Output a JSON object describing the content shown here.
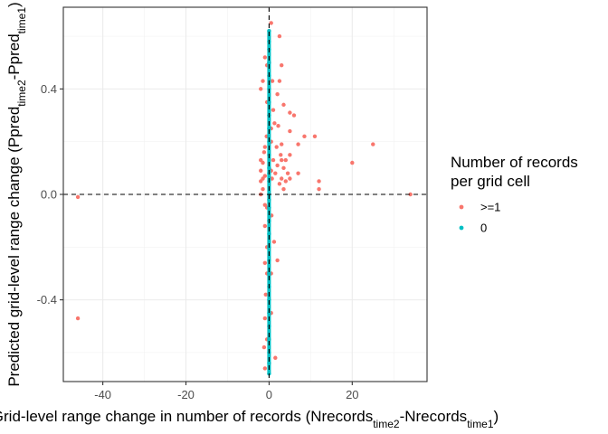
{
  "chart_data": {
    "type": "scatter",
    "xlabel": {
      "parts": [
        {
          "text": "Grid-level range change in number of records (Nrecords",
          "sub": false
        },
        {
          "text": "time2",
          "sub": true
        },
        {
          "text": "-Nrecords",
          "sub": false
        },
        {
          "text": "time1",
          "sub": true
        },
        {
          "text": ")",
          "sub": false
        }
      ]
    },
    "ylabel": {
      "parts": [
        {
          "text": "Predicted grid-level range change (Ppred",
          "sub": false
        },
        {
          "text": "time2",
          "sub": true
        },
        {
          "text": "-Ppred",
          "sub": false
        },
        {
          "text": "time1",
          "sub": true
        },
        {
          "text": ")",
          "sub": false
        }
      ]
    },
    "xlim": [
      -49.5,
      38
    ],
    "ylim": [
      -0.71,
      0.71
    ],
    "x_ticks": [
      -40,
      -20,
      0,
      20
    ],
    "x_tick_labels": [
      "-40",
      "-20",
      "0",
      "20"
    ],
    "y_ticks": [
      -0.4,
      0.0,
      0.4
    ],
    "y_tick_labels": [
      "-0.4",
      "0.0",
      "0.4"
    ],
    "grid": true,
    "reference_lines": {
      "x": 0,
      "y": 0,
      "style": "dashed"
    },
    "legend": {
      "title_lines": [
        "Number of records",
        "per grid cell"
      ],
      "position": "right",
      "entries": [
        {
          "label": ">=1",
          "color": "#F8766D"
        },
        {
          "label": "0",
          "color": "#00BFC4"
        }
      ]
    },
    "series": [
      {
        "name": ">=1",
        "color": "#F8766D",
        "points": [
          [
            -46,
            -0.01
          ],
          [
            -46,
            -0.47
          ],
          [
            34,
            0.0
          ],
          [
            25,
            0.19
          ],
          [
            20,
            0.12
          ],
          [
            12,
            0.05
          ],
          [
            12,
            0.02
          ],
          [
            11,
            0.22
          ],
          [
            8.5,
            0.22
          ],
          [
            7,
            0.19
          ],
          [
            7,
            0.08
          ],
          [
            6,
            0.3
          ],
          [
            5,
            0.31
          ],
          [
            5,
            0.24
          ],
          [
            5,
            0.15
          ],
          [
            5,
            0.06
          ],
          [
            4,
            0.13
          ],
          [
            4,
            0.05
          ],
          [
            3.5,
            0.34
          ],
          [
            3.5,
            0.1
          ],
          [
            3,
            0.49
          ],
          [
            3,
            0.19
          ],
          [
            3,
            0.06
          ],
          [
            2.5,
            0.43
          ],
          [
            2.5,
            0.04
          ],
          [
            2,
            0.38
          ],
          [
            2,
            0.11
          ],
          [
            2,
            -0.25
          ],
          [
            1.5,
            0.08
          ],
          [
            1,
            0.13
          ],
          [
            0.5,
            0.65
          ],
          [
            0.5,
            0.25
          ],
          [
            0.5,
            0.2
          ],
          [
            0.5,
            0.09
          ],
          [
            0.5,
            -0.3
          ],
          [
            0.5,
            -0.45
          ],
          [
            2.5,
            0.6
          ],
          [
            0,
            0.5
          ],
          [
            0,
            0.3
          ],
          [
            0,
            -0.1
          ],
          [
            -0.5,
            0.49
          ],
          [
            -0.5,
            0.35
          ],
          [
            -0.5,
            -0.05
          ],
          [
            -0.5,
            -0.2
          ],
          [
            -0.5,
            -0.3
          ],
          [
            -0.5,
            -0.55
          ],
          [
            -1,
            0.52
          ],
          [
            -1,
            0.18
          ],
          [
            -1,
            0.07
          ],
          [
            -1,
            -0.04
          ],
          [
            -1,
            -0.12
          ],
          [
            -1,
            -0.26
          ],
          [
            -1,
            -0.47
          ],
          [
            -1,
            -0.66
          ],
          [
            -1.5,
            0.43
          ],
          [
            -1.5,
            0.12
          ],
          [
            -1.5,
            0.02
          ],
          [
            -2,
            0.13
          ],
          [
            -2,
            0.09
          ],
          [
            -2,
            0.05
          ],
          [
            -2,
            0.0
          ],
          [
            -2,
            0.4
          ],
          [
            3,
            0.13
          ],
          [
            3.5,
            0.02
          ],
          [
            4.5,
            0.08
          ],
          [
            -1.2,
            0.16
          ],
          [
            1.8,
            0.18
          ],
          [
            2.2,
            0.26
          ],
          [
            -0.8,
            -0.38
          ],
          [
            1.2,
            -0.18
          ],
          [
            0.8,
            0.43
          ],
          [
            -1.2,
            -0.58
          ],
          [
            1.5,
            -0.62
          ],
          [
            0.7,
            0.06
          ],
          [
            1.0,
            0.32
          ],
          [
            -0.6,
            0.22
          ],
          [
            2.8,
            0.15
          ],
          [
            1.3,
            0.27
          ],
          [
            -1.5,
            0.06
          ],
          [
            0.6,
            -0.08
          ]
        ]
      },
      {
        "name": "0",
        "color": "#00BFC4",
        "points": [
          [
            0,
            0.62
          ],
          [
            0,
            0.55
          ],
          [
            0,
            0.5
          ],
          [
            0,
            0.45
          ],
          [
            0,
            0.4
          ],
          [
            0,
            0.35
          ],
          [
            0,
            0.3
          ],
          [
            0,
            0.25
          ],
          [
            0,
            0.2
          ],
          [
            0,
            0.15
          ],
          [
            0,
            0.1
          ],
          [
            0,
            0.05
          ],
          [
            0,
            0.0
          ],
          [
            0,
            -0.05
          ],
          [
            0,
            -0.1
          ],
          [
            0,
            -0.15
          ],
          [
            0,
            -0.2
          ],
          [
            0,
            -0.25
          ],
          [
            0,
            -0.3
          ],
          [
            0,
            -0.35
          ],
          [
            0,
            -0.4
          ],
          [
            0,
            -0.45
          ],
          [
            0,
            -0.5
          ],
          [
            0,
            -0.55
          ],
          [
            0,
            -0.6
          ],
          [
            0,
            -0.64
          ],
          [
            0,
            -0.68
          ],
          [
            0,
            0.58
          ],
          [
            0,
            0.08
          ],
          [
            0,
            -0.02
          ]
        ]
      }
    ]
  }
}
